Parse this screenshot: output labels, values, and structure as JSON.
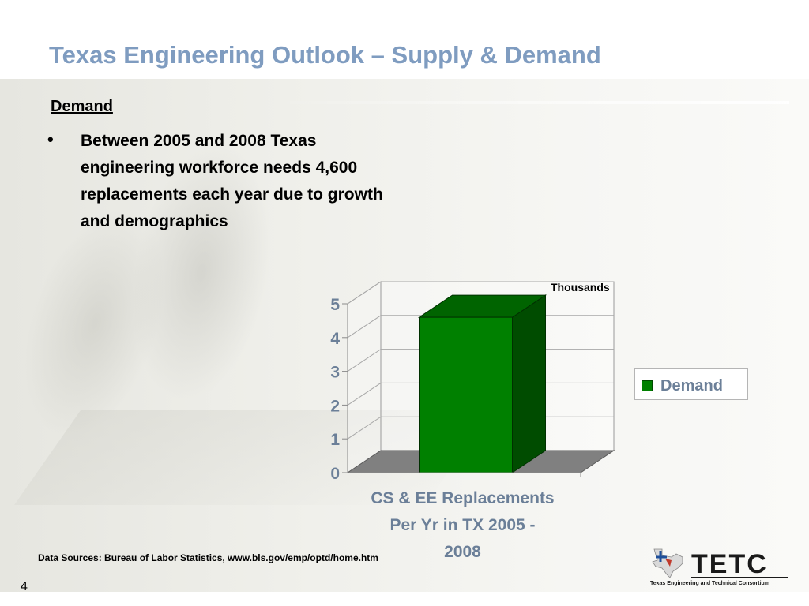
{
  "slide": {
    "title": "Texas Engineering Outlook – Supply & Demand",
    "section_heading": "Demand",
    "bullet_marker": "•",
    "bullet_text": "Between 2005 and 2008 Texas engineering workforce needs 4,600 replacements each year due to growth and demographics",
    "source": "Data Sources: Bureau of Labor Statistics, www.bls.gov/emp/optd/home.htm",
    "page_number": "4"
  },
  "logo": {
    "text": "TETC",
    "subtitle": "Texas Engineering and Technical Consortium",
    "icon": "texas-state-outline"
  },
  "colors": {
    "title": "#7f9cc0",
    "bar_front": "#008000",
    "bar_top": "#006400",
    "bar_side": "#004c00",
    "floor": "#808080"
  },
  "chart_data": {
    "type": "bar",
    "style": "3d",
    "categories": [
      "CS & EE Replacements Per Yr in TX 2005 - 2008"
    ],
    "category_label_lines": [
      "CS & EE Replacements",
      "Per Yr in TX 2005 -",
      "2008"
    ],
    "series": [
      {
        "name": "Demand",
        "values": [
          4.6
        ]
      }
    ],
    "unit_label": "Thousands",
    "ylim": [
      0,
      5
    ],
    "yticks": [
      "0",
      "1",
      "2",
      "3",
      "4",
      "5"
    ],
    "grid": true,
    "legend": "right"
  }
}
